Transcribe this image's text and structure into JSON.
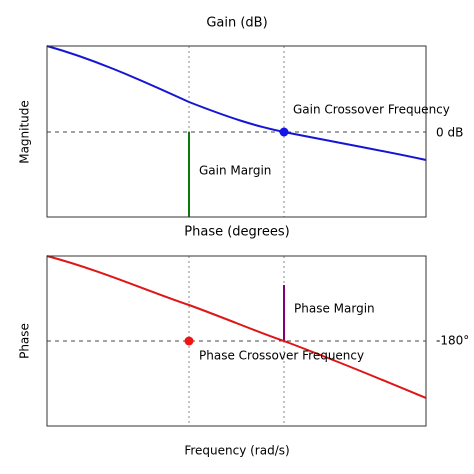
{
  "gain_panel": {
    "title": "Gain (dB)",
    "y_label": "Magnitude",
    "reference_label": "0 dB",
    "crossover_label": "Gain Crossover Frequency",
    "margin_label": "Gain Margin"
  },
  "phase_panel": {
    "title": "Phase (degrees)",
    "y_label": "Phase",
    "reference_label": "-180°",
    "crossover_label": "Phase Crossover Frequency",
    "margin_label": "Phase Margin"
  },
  "x_label": "Frequency (rad/s)"
}
